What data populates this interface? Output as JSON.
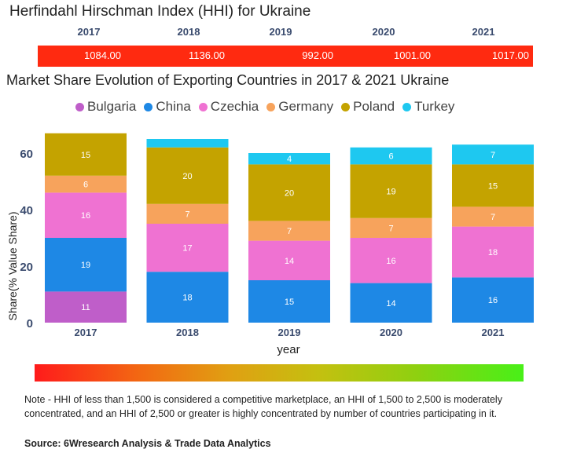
{
  "hhi": {
    "title": "Herfindahl Hirschman Index (HHI) for Ukraine",
    "years": [
      "2017",
      "2018",
      "2019",
      "2020",
      "2021"
    ],
    "values": [
      "1084.00",
      "1136.00",
      "992.00",
      "1001.00",
      "1017.00"
    ],
    "bar_color": "#ff2a10"
  },
  "chart_data": {
    "type": "bar",
    "stacked": true,
    "title": "Market Share Evolution of Exporting Countries in 2017 & 2021 Ukraine",
    "xlabel": "year",
    "ylabel": "Share(% Value Share)",
    "categories": [
      "2017",
      "2018",
      "2019",
      "2020",
      "2021"
    ],
    "ylim": [
      0,
      65
    ],
    "yticks": [
      0,
      20,
      40,
      60
    ],
    "series": [
      {
        "name": "Bulgaria",
        "color": "#bf5ec9",
        "values": [
          11,
          null,
          null,
          null,
          null
        ],
        "labels": [
          "11",
          "",
          "",
          "",
          ""
        ]
      },
      {
        "name": "China",
        "color": "#1e88e5",
        "values": [
          19,
          18,
          15,
          14,
          16
        ],
        "labels": [
          "19",
          "18",
          "15",
          "14",
          "16"
        ]
      },
      {
        "name": "Czechia",
        "color": "#ef72d2",
        "values": [
          16,
          17,
          14,
          16,
          18
        ],
        "labels": [
          "16",
          "17",
          "14",
          "16",
          "18"
        ]
      },
      {
        "name": "Germany",
        "color": "#f7a35c",
        "values": [
          6,
          7,
          7,
          7,
          7
        ],
        "labels": [
          "6",
          "7",
          "7",
          "7",
          "7"
        ]
      },
      {
        "name": "Poland",
        "color": "#c4a300",
        "values": [
          15,
          20,
          20,
          19,
          15
        ],
        "labels": [
          "15",
          "20",
          "20",
          "19",
          "15"
        ]
      },
      {
        "name": "Turkey",
        "color": "#1ec8f0",
        "values": [
          null,
          3,
          4,
          6,
          7
        ],
        "labels": [
          "",
          "",
          "4",
          "6",
          "7"
        ]
      }
    ]
  },
  "note": "Note - HHI of less than 1,500 is considered a competitive marketplace, an HHI of 1,500 to 2,500 is moderately concentrated, and an HHI of 2,500 or greater is highly concentrated by number of countries participating in it.",
  "source": "Source: 6Wresearch Analysis & Trade Data Analytics"
}
